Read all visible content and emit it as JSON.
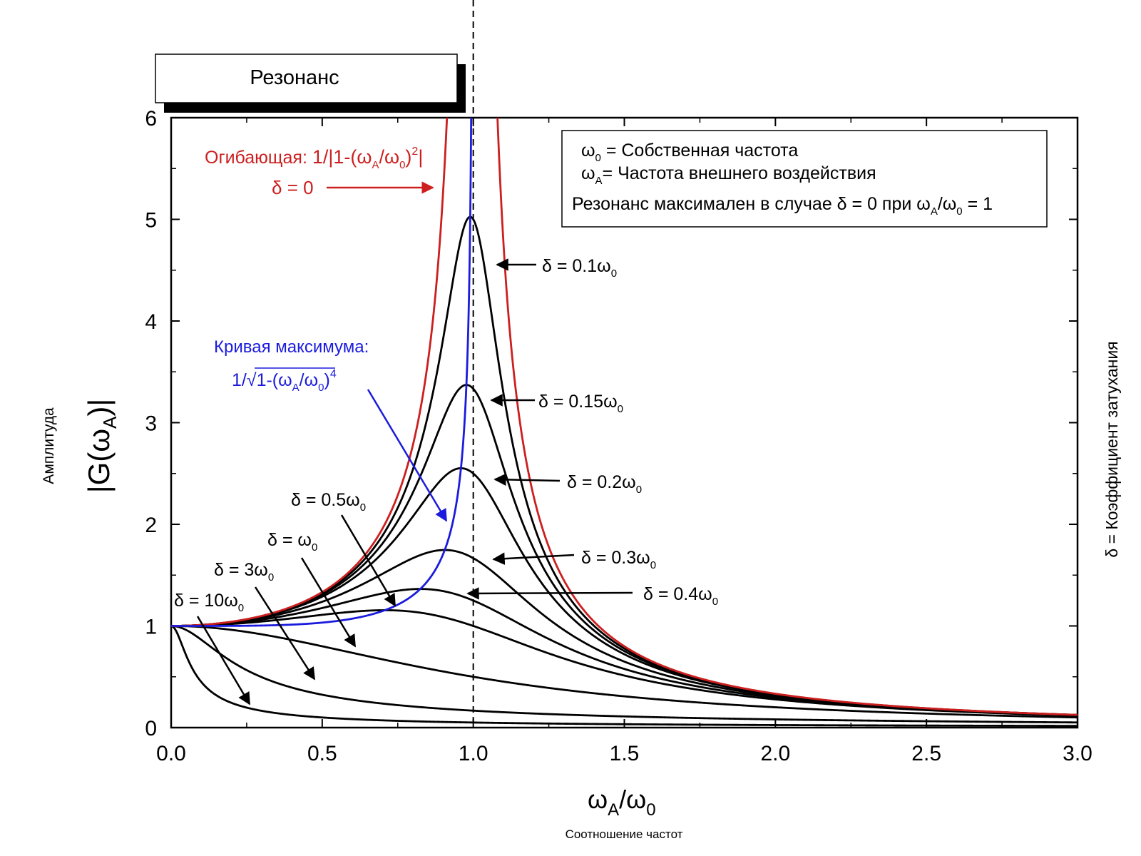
{
  "title_box": "Резонанс",
  "chart_data": {
    "type": "line",
    "xlim": [
      0,
      3.0
    ],
    "ylim": [
      0,
      6
    ],
    "x_ticks": [
      "0.0",
      "0.5",
      "1.0",
      "1.5",
      "2.0",
      "2.5",
      "3.0"
    ],
    "y_ticks": [
      "0",
      "1",
      "2",
      "3",
      "4",
      "5",
      "6"
    ],
    "x_axis_label": "ωA/ω0",
    "x_axis_sublabel": "Соотношение частот",
    "y_axis_label": "|G(ωA)|",
    "y_axis_sublabel": "Амплитуда",
    "right_side_label": "δ = Коэффициент затухания",
    "resonance_line_x": 1.0,
    "legend_box": {
      "line1": "ω0 =  Собственная частота",
      "line2": "ωA =  Частота внешнего воздействия",
      "line3": "Резонанс максимален в случае  δ = 0 при ωA/ω0 = 1"
    },
    "envelope": {
      "label": "Огибающая: 1/|1-(ωA/ω0)2|",
      "delta_label": "δ = 0",
      "color": "#cc1f1f",
      "formula": "1/|1-x^2|"
    },
    "maximum_curve": {
      "label": "Кривая максимума:",
      "formula_label": "1/√1-(ωA/ω0)4",
      "color": "#1b1bdd",
      "formula": "1/sqrt(1-x^4)"
    },
    "damping_series": [
      {
        "delta": 0.1,
        "label": "δ = 0.1ω0",
        "color": "#000000"
      },
      {
        "delta": 0.15,
        "label": "δ = 0.15ω0",
        "color": "#000000"
      },
      {
        "delta": 0.2,
        "label": "δ = 0.2ω0",
        "color": "#000000"
      },
      {
        "delta": 0.3,
        "label": "δ = 0.3ω0",
        "color": "#000000"
      },
      {
        "delta": 0.4,
        "label": "δ = 0.4ω0",
        "color": "#000000"
      },
      {
        "delta": 0.5,
        "label": "δ = 0.5ω0",
        "color": "#000000"
      },
      {
        "delta": 1,
        "label": "δ = ω0",
        "color": "#000000"
      },
      {
        "delta": 3,
        "label": "δ = 3ω0",
        "color": "#000000"
      },
      {
        "delta": 10,
        "label": "δ = 10ω0",
        "color": "#000000"
      }
    ]
  }
}
